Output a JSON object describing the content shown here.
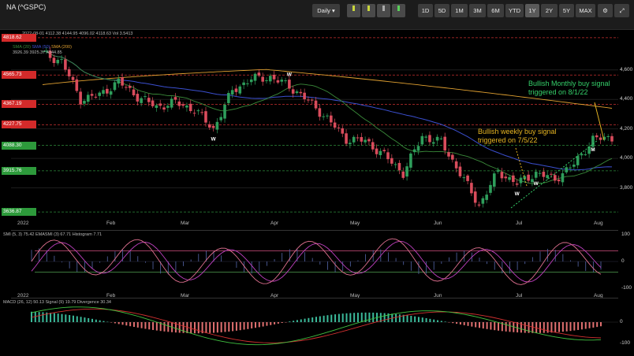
{
  "header": {
    "title": "NA (^GSPC)",
    "interval": "Daily",
    "ranges": [
      "1D",
      "5D",
      "1M",
      "3M",
      "6M",
      "YTD",
      "1Y",
      "2Y",
      "5Y",
      "MAX"
    ],
    "active_range": "1Y"
  },
  "price_legend": {
    "ohlc": "2022-08-01  4112.38  4144.95  4096.02  4118.63  Vol 3.5413",
    "sma20": "SMA (20)",
    "sma20_value": "3926.39",
    "sma50": "SMA (50)",
    "sma50_value": "3925.37",
    "sma200": "SMA (200)",
    "sma200_value": "4344.85"
  },
  "price_labels": [
    {
      "text": "4818.62",
      "color": "red"
    },
    {
      "text": "4565.73",
      "color": "red"
    },
    {
      "text": "4367.19",
      "color": "red"
    },
    {
      "text": "4227.75",
      "color": "red"
    },
    {
      "text": "4088.30",
      "color": "green"
    },
    {
      "text": "3915.76",
      "color": "green"
    },
    {
      "text": "3636.87",
      "color": "green"
    }
  ],
  "y_axis_labels": [
    "4,600",
    "4,400",
    "4,200",
    "4,000",
    "3,800"
  ],
  "x_axis_labels": [
    "2022",
    "Feb",
    "Mar",
    "Apr",
    "May",
    "Jun",
    "Jul",
    "Aug"
  ],
  "annotations": {
    "monthly": "Bullish Monthly buy signal triggered on 8/1/22",
    "weekly": "Bullish weekly buy signal triggered on 7/5/22"
  },
  "signal_letters": {
    "w": "W",
    "m": "M"
  },
  "smi_legend": "SMI (5, 3) 75.42   EMASMI (3) 67.71   Histogram 7.71",
  "smi_axis": [
    "100",
    "0",
    "-100"
  ],
  "macd_legend": "MACD (26, 12) 50.13   Signal (9) 19.79   Divergence 30.34",
  "macd_axis": [
    "0",
    "-100"
  ],
  "colors": {
    "up": "#2e9e5b",
    "down": "#d94c5c",
    "sma20": "#3a8a3a",
    "sma50": "#3b4fcf",
    "sma200": "#e0a030",
    "level_red": "#c83030",
    "level_green": "#2d8a3a"
  },
  "chart_data": [
    {
      "type": "candlestick",
      "x": [
        "2022-01-03",
        "2022-01-10",
        "2022-01-17",
        "2022-01-24",
        "2022-01-31",
        "2022-02-07",
        "2022-02-14",
        "2022-02-21",
        "2022-02-28",
        "2022-03-07",
        "2022-03-14",
        "2022-03-21",
        "2022-03-28",
        "2022-04-04",
        "2022-04-11",
        "2022-04-18",
        "2022-04-25",
        "2022-05-02",
        "2022-05-09",
        "2022-05-16",
        "2022-05-23",
        "2022-05-30",
        "2022-06-06",
        "2022-06-13",
        "2022-06-20",
        "2022-06-27",
        "2022-07-05",
        "2022-07-11",
        "2022-07-18",
        "2022-07-25",
        "2022-08-01"
      ],
      "series": [
        {
          "name": "Close",
          "values": [
            4710,
            4660,
            4400,
            4430,
            4520,
            4420,
            4350,
            4380,
            4330,
            4200,
            4460,
            4540,
            4550,
            4490,
            4390,
            4270,
            4130,
            4120,
            4020,
            3900,
            4150,
            4110,
            3900,
            3680,
            3910,
            3830,
            3900,
            3860,
            3960,
            4130,
            4140
          ]
        }
      ],
      "price_levels": [
        4818.62,
        4565.73,
        4367.19,
        4227.75,
        4088.3,
        3915.76,
        3636.87
      ],
      "ylim": [
        3600,
        4850
      ]
    },
    {
      "type": "line",
      "name": "SMI",
      "ylim": [
        -100,
        100
      ],
      "levels": [
        40,
        -40
      ]
    },
    {
      "type": "line",
      "name": "MACD",
      "ylim": [
        -150,
        100
      ]
    }
  ]
}
